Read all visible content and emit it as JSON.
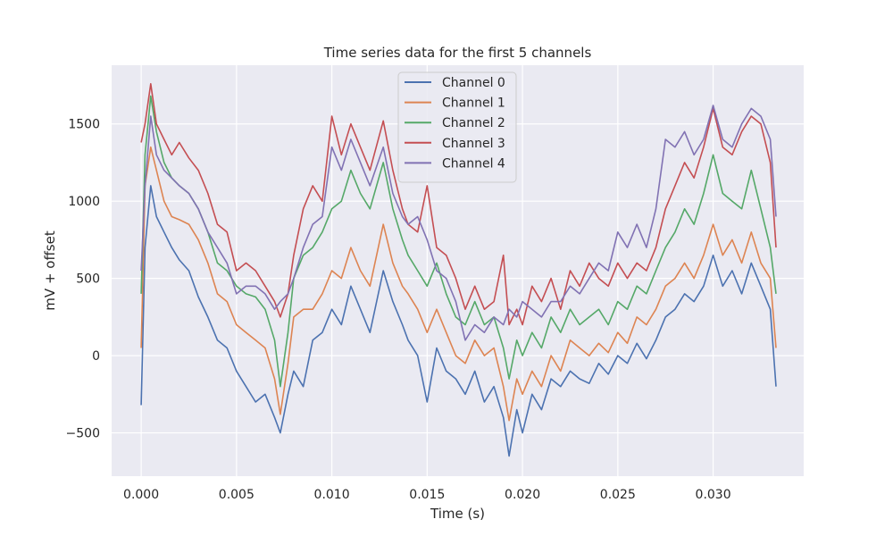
{
  "chart_data": {
    "type": "line",
    "title": "Time series data for the first 5 channels",
    "xlabel": "Time (s)",
    "ylabel": "mV + offset",
    "xlim": [
      -0.00155,
      0.03475
    ],
    "ylim": [
      -780,
      1880
    ],
    "xticks": [
      0.0,
      0.005,
      0.01,
      0.015,
      0.02,
      0.025,
      0.03
    ],
    "xtick_labels": [
      "0.000",
      "0.005",
      "0.010",
      "0.015",
      "0.020",
      "0.025",
      "0.030"
    ],
    "yticks": [
      -500,
      0,
      500,
      1000,
      1500
    ],
    "ytick_labels": [
      "−500",
      "0",
      "500",
      "1000",
      "1500"
    ],
    "grid": true,
    "legend_position": "top-center",
    "background_color": "#eaeaf2",
    "series": [
      {
        "name": "Channel 0",
        "color": "#4c72b0",
        "x": [
          0.0,
          0.0002,
          0.0005,
          0.0008,
          0.0012,
          0.0016,
          0.002,
          0.0025,
          0.003,
          0.0035,
          0.004,
          0.0045,
          0.005,
          0.0055,
          0.006,
          0.0065,
          0.007,
          0.0073,
          0.0077,
          0.008,
          0.0085,
          0.009,
          0.0095,
          0.01,
          0.0105,
          0.011,
          0.0115,
          0.012,
          0.0127,
          0.0132,
          0.0137,
          0.014,
          0.0145,
          0.015,
          0.0155,
          0.016,
          0.0165,
          0.017,
          0.0175,
          0.018,
          0.0185,
          0.019,
          0.0193,
          0.0197,
          0.02,
          0.0205,
          0.021,
          0.0215,
          0.022,
          0.0225,
          0.023,
          0.0235,
          0.024,
          0.0245,
          0.025,
          0.0255,
          0.026,
          0.0265,
          0.027,
          0.0275,
          0.028,
          0.0285,
          0.029,
          0.0295,
          0.03,
          0.0305,
          0.031,
          0.0315,
          0.032,
          0.0325,
          0.033,
          0.0333
        ],
        "values": [
          -320,
          700,
          1100,
          900,
          800,
          700,
          620,
          550,
          380,
          250,
          100,
          50,
          -100,
          -200,
          -300,
          -250,
          -400,
          -500,
          -250,
          -100,
          -200,
          100,
          150,
          300,
          200,
          450,
          300,
          150,
          550,
          350,
          200,
          100,
          0,
          -300,
          50,
          -100,
          -150,
          -250,
          -100,
          -300,
          -200,
          -400,
          -650,
          -350,
          -500,
          -250,
          -350,
          -150,
          -200,
          -100,
          -150,
          -180,
          -50,
          -120,
          0,
          -50,
          80,
          -20,
          100,
          250,
          300,
          400,
          350,
          450,
          650,
          450,
          550,
          400,
          600,
          450,
          300,
          -200
        ],
        "label": "Channel 0"
      },
      {
        "name": "Channel 1",
        "color": "#dd8452",
        "x": [
          0.0,
          0.0002,
          0.0005,
          0.0008,
          0.0012,
          0.0016,
          0.002,
          0.0025,
          0.003,
          0.0035,
          0.004,
          0.0045,
          0.005,
          0.0055,
          0.006,
          0.0065,
          0.007,
          0.0073,
          0.0077,
          0.008,
          0.0085,
          0.009,
          0.0095,
          0.01,
          0.0105,
          0.011,
          0.0115,
          0.012,
          0.0127,
          0.0132,
          0.0137,
          0.014,
          0.0145,
          0.015,
          0.0155,
          0.016,
          0.0165,
          0.017,
          0.0175,
          0.018,
          0.0185,
          0.019,
          0.0193,
          0.0197,
          0.02,
          0.0205,
          0.021,
          0.0215,
          0.022,
          0.0225,
          0.023,
          0.0235,
          0.024,
          0.0245,
          0.025,
          0.0255,
          0.026,
          0.0265,
          0.027,
          0.0275,
          0.028,
          0.0285,
          0.029,
          0.0295,
          0.03,
          0.0305,
          0.031,
          0.0315,
          0.032,
          0.0325,
          0.033,
          0.0333
        ],
        "values": [
          50,
          1100,
          1350,
          1200,
          1000,
          900,
          880,
          850,
          750,
          600,
          400,
          350,
          200,
          150,
          100,
          50,
          -150,
          -380,
          -50,
          250,
          300,
          300,
          400,
          550,
          500,
          700,
          550,
          450,
          850,
          600,
          450,
          400,
          300,
          150,
          300,
          150,
          0,
          -50,
          100,
          0,
          50,
          -200,
          -420,
          -150,
          -250,
          -100,
          -200,
          0,
          -100,
          100,
          50,
          0,
          80,
          20,
          150,
          80,
          250,
          200,
          300,
          450,
          500,
          600,
          500,
          650,
          850,
          650,
          750,
          600,
          800,
          600,
          500,
          50
        ],
        "label": "Channel 1"
      },
      {
        "name": "Channel 2",
        "color": "#55a868",
        "x": [
          0.0,
          0.0002,
          0.0005,
          0.0008,
          0.0012,
          0.0016,
          0.002,
          0.0025,
          0.003,
          0.0035,
          0.004,
          0.0045,
          0.005,
          0.0055,
          0.006,
          0.0065,
          0.007,
          0.0073,
          0.0077,
          0.008,
          0.0085,
          0.009,
          0.0095,
          0.01,
          0.0105,
          0.011,
          0.0115,
          0.012,
          0.0127,
          0.0132,
          0.0137,
          0.014,
          0.0145,
          0.015,
          0.0155,
          0.016,
          0.0165,
          0.017,
          0.0175,
          0.018,
          0.0185,
          0.019,
          0.0193,
          0.0197,
          0.02,
          0.0205,
          0.021,
          0.0215,
          0.022,
          0.0225,
          0.023,
          0.0235,
          0.024,
          0.0245,
          0.025,
          0.0255,
          0.026,
          0.0265,
          0.027,
          0.0275,
          0.028,
          0.0285,
          0.029,
          0.0295,
          0.03,
          0.0305,
          0.031,
          0.0315,
          0.032,
          0.0325,
          0.033,
          0.0333
        ],
        "values": [
          400,
          1300,
          1680,
          1450,
          1250,
          1150,
          1100,
          1050,
          950,
          800,
          600,
          550,
          450,
          400,
          380,
          300,
          100,
          -200,
          150,
          500,
          650,
          700,
          800,
          950,
          1000,
          1200,
          1050,
          950,
          1250,
          950,
          750,
          650,
          550,
          450,
          600,
          400,
          250,
          200,
          350,
          200,
          250,
          50,
          -150,
          100,
          0,
          150,
          50,
          250,
          150,
          300,
          200,
          250,
          300,
          200,
          350,
          300,
          450,
          400,
          550,
          700,
          800,
          950,
          850,
          1050,
          1300,
          1050,
          1000,
          950,
          1200,
          950,
          700,
          400
        ],
        "label": "Channel 2"
      },
      {
        "name": "Channel 3",
        "color": "#c44e52",
        "x": [
          0.0,
          0.0002,
          0.0005,
          0.0008,
          0.0012,
          0.0016,
          0.002,
          0.0025,
          0.003,
          0.0035,
          0.004,
          0.0045,
          0.005,
          0.0055,
          0.006,
          0.0065,
          0.007,
          0.0073,
          0.0077,
          0.008,
          0.0085,
          0.009,
          0.0095,
          0.01,
          0.0105,
          0.011,
          0.0115,
          0.012,
          0.0127,
          0.0132,
          0.0137,
          0.014,
          0.0145,
          0.015,
          0.0155,
          0.016,
          0.0165,
          0.017,
          0.0175,
          0.018,
          0.0185,
          0.019,
          0.0193,
          0.0197,
          0.02,
          0.0205,
          0.021,
          0.0215,
          0.022,
          0.0225,
          0.023,
          0.0235,
          0.024,
          0.0245,
          0.025,
          0.0255,
          0.026,
          0.0265,
          0.027,
          0.0275,
          0.028,
          0.0285,
          0.029,
          0.0295,
          0.03,
          0.0305,
          0.031,
          0.0315,
          0.032,
          0.0325,
          0.033,
          0.0333
        ],
        "values": [
          1380,
          1500,
          1760,
          1500,
          1400,
          1300,
          1380,
          1280,
          1200,
          1050,
          850,
          800,
          550,
          600,
          550,
          450,
          350,
          250,
          400,
          650,
          950,
          1100,
          1000,
          1550,
          1300,
          1500,
          1350,
          1200,
          1520,
          1200,
          950,
          850,
          800,
          1100,
          700,
          650,
          500,
          300,
          450,
          300,
          350,
          650,
          200,
          300,
          200,
          450,
          350,
          500,
          300,
          550,
          450,
          600,
          500,
          450,
          600,
          500,
          600,
          550,
          700,
          950,
          1100,
          1250,
          1150,
          1350,
          1600,
          1350,
          1300,
          1450,
          1550,
          1500,
          1250,
          700
        ],
        "label": "Channel 3"
      },
      {
        "name": "Channel 4",
        "color": "#8172b3",
        "x": [
          0.0,
          0.0002,
          0.0005,
          0.0008,
          0.0012,
          0.0016,
          0.002,
          0.0025,
          0.003,
          0.0035,
          0.004,
          0.0045,
          0.005,
          0.0055,
          0.006,
          0.0065,
          0.007,
          0.0073,
          0.0077,
          0.008,
          0.0085,
          0.009,
          0.0095,
          0.01,
          0.0105,
          0.011,
          0.0115,
          0.012,
          0.0127,
          0.0132,
          0.0137,
          0.014,
          0.0145,
          0.015,
          0.0155,
          0.016,
          0.0165,
          0.017,
          0.0175,
          0.018,
          0.0185,
          0.019,
          0.0193,
          0.0197,
          0.02,
          0.0205,
          0.021,
          0.0215,
          0.022,
          0.0225,
          0.023,
          0.0235,
          0.024,
          0.0245,
          0.025,
          0.0255,
          0.026,
          0.0265,
          0.027,
          0.0275,
          0.028,
          0.0285,
          0.029,
          0.0295,
          0.03,
          0.0305,
          0.031,
          0.0315,
          0.032,
          0.0325,
          0.033,
          0.0333
        ],
        "values": [
          550,
          1100,
          1550,
          1300,
          1200,
          1150,
          1100,
          1050,
          950,
          800,
          700,
          600,
          400,
          450,
          450,
          400,
          300,
          350,
          400,
          500,
          700,
          850,
          900,
          1350,
          1200,
          1400,
          1250,
          1100,
          1350,
          1050,
          900,
          850,
          900,
          750,
          550,
          500,
          350,
          100,
          200,
          150,
          250,
          200,
          300,
          250,
          350,
          300,
          250,
          350,
          350,
          450,
          400,
          500,
          600,
          550,
          800,
          700,
          850,
          700,
          950,
          1400,
          1350,
          1450,
          1300,
          1400,
          1620,
          1400,
          1350,
          1500,
          1600,
          1550,
          1400,
          900
        ],
        "label": "Channel 4"
      }
    ]
  }
}
